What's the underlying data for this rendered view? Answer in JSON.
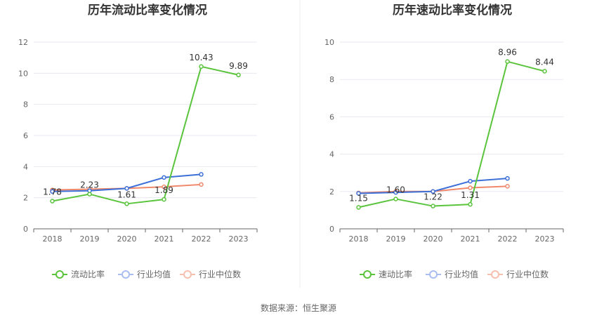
{
  "source_label": "数据来源：恒生聚源",
  "chart_data": [
    {
      "type": "line",
      "title": "历年流动比率变化情况",
      "categories": [
        "2018",
        "2019",
        "2020",
        "2021",
        "2022",
        "2023"
      ],
      "ylim": [
        0,
        12
      ],
      "yticks": [
        0,
        2,
        4,
        6,
        8,
        10,
        12
      ],
      "grid": true,
      "legend_position": "bottom",
      "series": [
        {
          "name": "流动比率",
          "color": "#5ac43c",
          "values": [
            1.78,
            2.23,
            1.61,
            1.89,
            10.43,
            9.89
          ],
          "labels": [
            "1.78",
            "2.23",
            "1.61",
            "1.89",
            "10.43",
            "9.89"
          ]
        },
        {
          "name": "行业均值",
          "color": "#3d6fd8",
          "values": [
            2.4,
            2.45,
            2.6,
            3.3,
            3.5,
            null
          ]
        },
        {
          "name": "行业中位数",
          "color": "#f0896c",
          "values": [
            2.5,
            2.55,
            2.6,
            2.7,
            2.85,
            null
          ]
        }
      ]
    },
    {
      "type": "line",
      "title": "历年速动比率变化情况",
      "categories": [
        "2018",
        "2019",
        "2020",
        "2021",
        "2022",
        "2023"
      ],
      "ylim": [
        0,
        10
      ],
      "yticks": [
        0,
        2,
        4,
        6,
        8,
        10
      ],
      "grid": true,
      "legend_position": "bottom",
      "series": [
        {
          "name": "速动比率",
          "color": "#5ac43c",
          "values": [
            1.15,
            1.6,
            1.22,
            1.31,
            8.96,
            8.44
          ],
          "labels": [
            "1.15",
            "1.60",
            "1.22",
            "1.31",
            "8.96",
            "8.44"
          ]
        },
        {
          "name": "行业均值",
          "color": "#3d6fd8",
          "values": [
            1.9,
            1.95,
            2.0,
            2.55,
            2.7,
            null
          ]
        },
        {
          "name": "行业中位数",
          "color": "#f0896c",
          "values": [
            1.92,
            2.0,
            2.0,
            2.2,
            2.28,
            null
          ]
        }
      ]
    }
  ]
}
